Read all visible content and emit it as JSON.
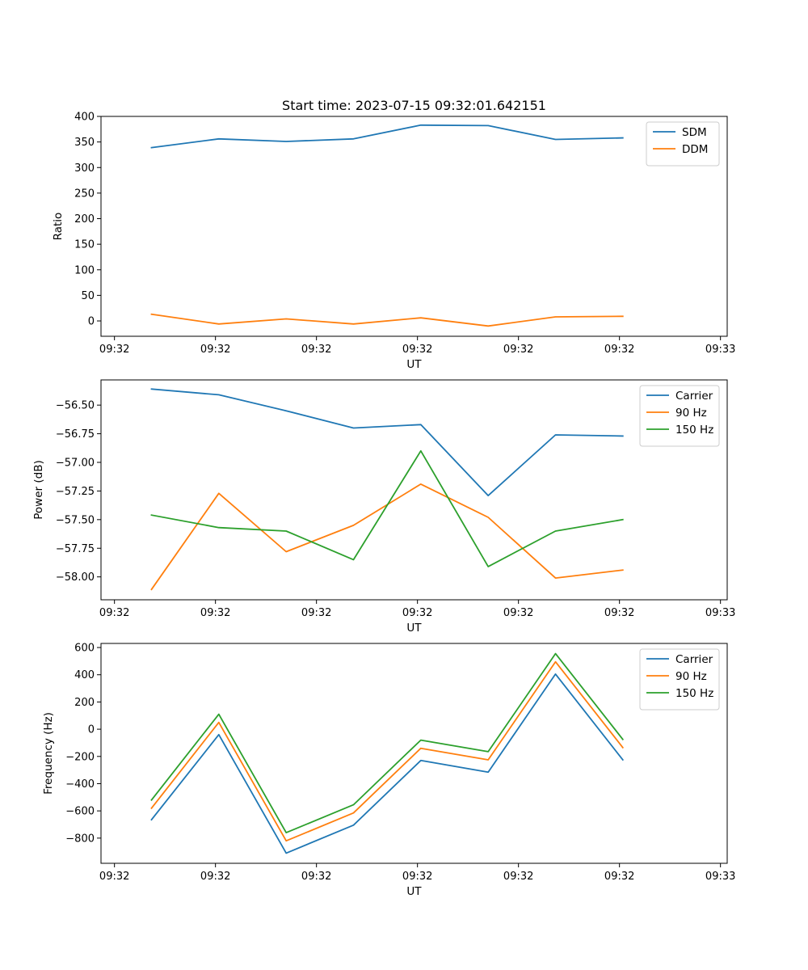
{
  "figure_title": "Start time: 2023-07-15 09:32:01.642151",
  "colors": {
    "blue": "#1f77b4",
    "orange": "#ff7f0e",
    "green": "#2ca02c"
  },
  "chart_data": [
    {
      "type": "line",
      "title": "Start time: 2023-07-15 09:32:01.642151",
      "xlabel": "UT",
      "ylabel": "Ratio",
      "x": [
        1,
        2,
        3,
        4,
        5,
        6,
        7,
        8
      ],
      "xlim": [
        0.25,
        9.55
      ],
      "xticks": [
        0.45,
        1.95,
        3.45,
        4.95,
        6.45,
        7.95,
        9.45
      ],
      "xtick_labels": [
        "09:32",
        "09:32",
        "09:32",
        "09:32",
        "09:32",
        "09:32",
        "09:33"
      ],
      "ylim": [
        -30,
        400
      ],
      "yticks": [
        0,
        50,
        100,
        150,
        200,
        250,
        300,
        350,
        400
      ],
      "ytick_labels": [
        "0",
        "50",
        "100",
        "150",
        "200",
        "250",
        "300",
        "350",
        "400"
      ],
      "legend_position": "upper right",
      "grid": false,
      "series": [
        {
          "name": "SDM",
          "color": "#1f77b4",
          "values": [
            339,
            356,
            351,
            356,
            383,
            382,
            355,
            358
          ]
        },
        {
          "name": "DDM",
          "color": "#ff7f0e",
          "values": [
            13,
            -6,
            4,
            -6,
            6,
            -10,
            8,
            9
          ]
        }
      ]
    },
    {
      "type": "line",
      "title": "",
      "xlabel": "UT",
      "ylabel": "Power (dB)",
      "x": [
        1,
        2,
        3,
        4,
        5,
        6,
        7,
        8
      ],
      "xlim": [
        0.25,
        9.55
      ],
      "xticks": [
        0.45,
        1.95,
        3.45,
        4.95,
        6.45,
        7.95,
        9.45
      ],
      "xtick_labels": [
        "09:32",
        "09:32",
        "09:32",
        "09:32",
        "09:32",
        "09:32",
        "09:33"
      ],
      "ylim": [
        -58.2,
        -56.28
      ],
      "yticks": [
        -58.0,
        -57.75,
        -57.5,
        -57.25,
        -57.0,
        -56.75,
        -56.5
      ],
      "ytick_labels": [
        "−58.00",
        "−57.75",
        "−57.50",
        "−57.25",
        "−57.00",
        "−56.75",
        "−56.50"
      ],
      "legend_position": "upper right",
      "grid": false,
      "series": [
        {
          "name": "Carrier",
          "color": "#1f77b4",
          "values": [
            -56.36,
            -56.41,
            -56.55,
            -56.7,
            -56.67,
            -57.29,
            -56.76,
            -56.77
          ]
        },
        {
          "name": "90 Hz",
          "color": "#ff7f0e",
          "values": [
            -58.11,
            -57.27,
            -57.78,
            -57.55,
            -57.19,
            -57.48,
            -58.01,
            -57.94
          ]
        },
        {
          "name": "150 Hz",
          "color": "#2ca02c",
          "values": [
            -57.46,
            -57.57,
            -57.6,
            -57.85,
            -56.9,
            -57.91,
            -57.6,
            -57.5
          ]
        }
      ]
    },
    {
      "type": "line",
      "title": "",
      "xlabel": "UT",
      "ylabel": "Frequency (Hz)",
      "x": [
        1,
        2,
        3,
        4,
        5,
        6,
        7,
        8
      ],
      "xlim": [
        0.25,
        9.55
      ],
      "xticks": [
        0.45,
        1.95,
        3.45,
        4.95,
        6.45,
        7.95,
        9.45
      ],
      "xtick_labels": [
        "09:32",
        "09:32",
        "09:32",
        "09:32",
        "09:32",
        "09:32",
        "09:33"
      ],
      "ylim": [
        -985,
        630
      ],
      "yticks": [
        -800,
        -600,
        -400,
        -200,
        0,
        200,
        400,
        600
      ],
      "ytick_labels": [
        "−800",
        "−600",
        "−400",
        "−200",
        "0",
        "200",
        "400",
        "600"
      ],
      "legend_position": "upper right",
      "grid": false,
      "series": [
        {
          "name": "Carrier",
          "color": "#1f77b4",
          "values": [
            -665,
            -40,
            -910,
            -705,
            -230,
            -315,
            405,
            -225
          ]
        },
        {
          "name": "90 Hz",
          "color": "#ff7f0e",
          "values": [
            -580,
            50,
            -820,
            -615,
            -140,
            -225,
            495,
            -135
          ]
        },
        {
          "name": "150 Hz",
          "color": "#2ca02c",
          "values": [
            -520,
            110,
            -760,
            -555,
            -80,
            -165,
            555,
            -75
          ]
        }
      ]
    }
  ]
}
